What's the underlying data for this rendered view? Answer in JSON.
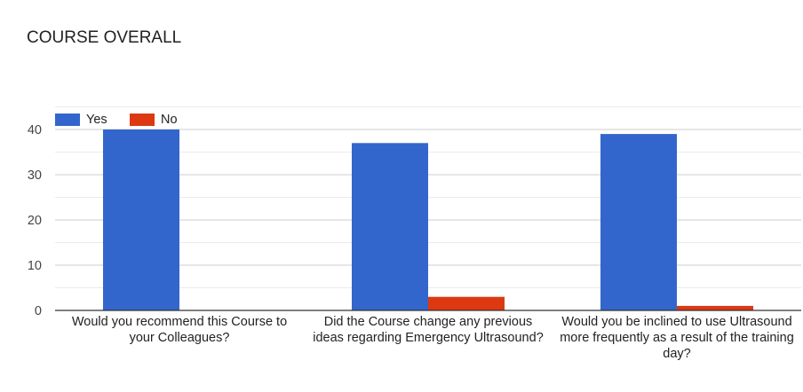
{
  "chart_data": {
    "type": "bar",
    "title": "COURSE OVERALL",
    "categories": [
      "Would you recommend this Course to your Colleagues?",
      "Did the Course change any previous ideas regarding Emergency Ultrasound?",
      "Would you be inclined to use Ultrasound more frequently as a result of the training day?"
    ],
    "series": [
      {
        "name": "Yes",
        "color": "#3366cc",
        "values": [
          40,
          37,
          39
        ]
      },
      {
        "name": "No",
        "color": "#dc3912",
        "values": [
          0,
          3,
          1
        ]
      }
    ],
    "ylim": [
      0,
      45
    ],
    "yticks": [
      "0",
      "10",
      "20",
      "30",
      "40"
    ],
    "ytick_values": [
      0,
      10,
      20,
      30,
      40
    ],
    "grid": true,
    "legend": "top-left"
  }
}
